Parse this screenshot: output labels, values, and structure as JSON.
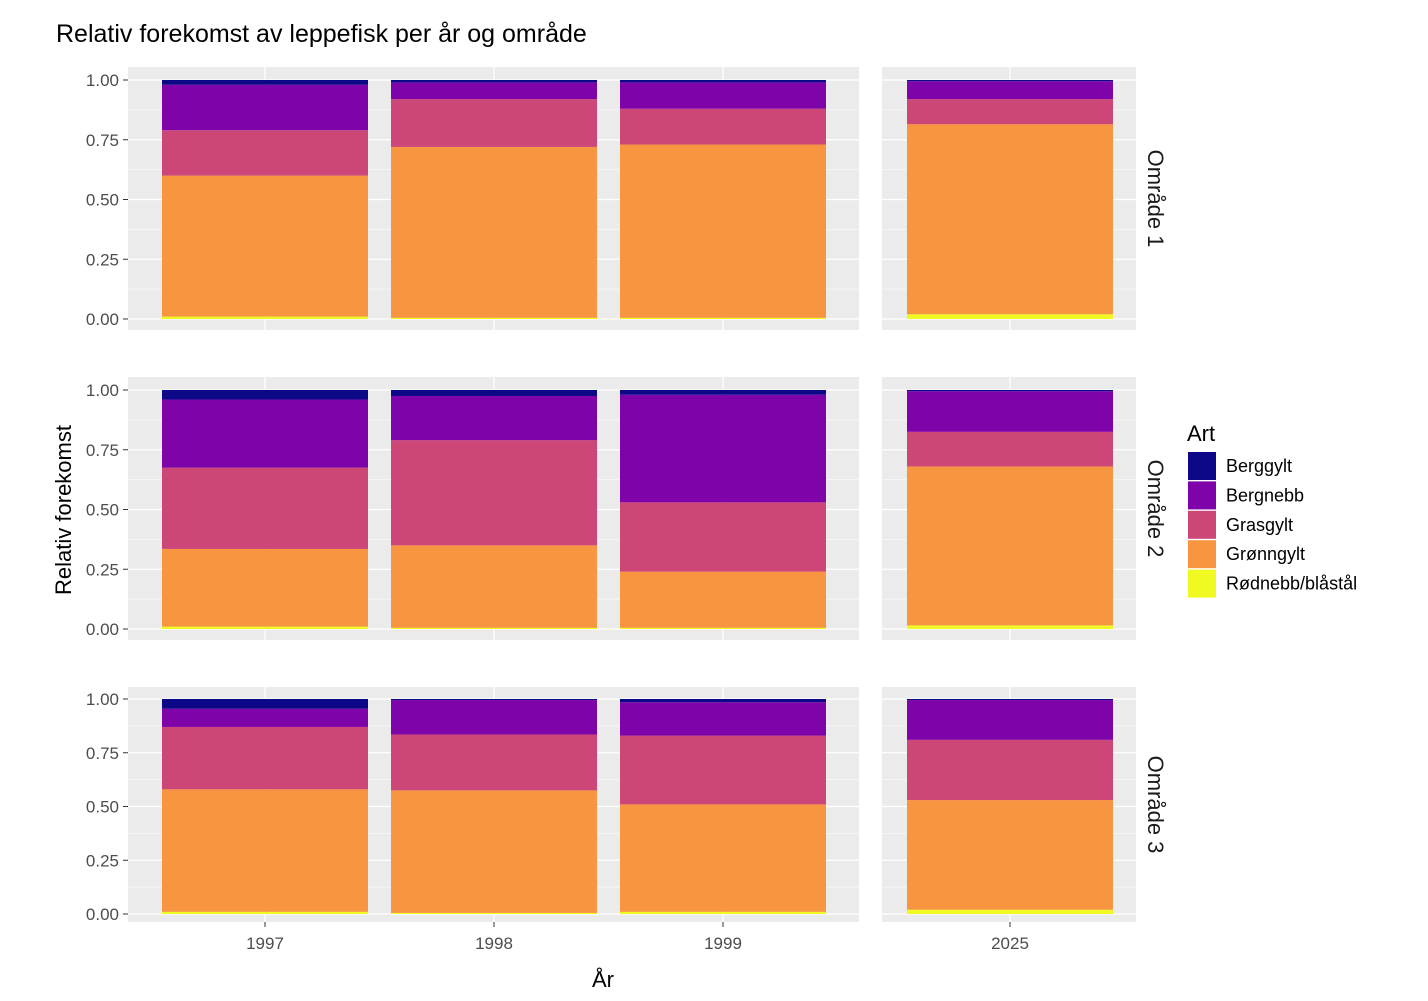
{
  "chart_data": {
    "type": "bar",
    "stacked": true,
    "title": "Relativ forekomst av leppefisk per år og område",
    "xlabel": "År",
    "ylabel": "Relativ forekomst",
    "ylim": [
      0,
      1
    ],
    "y_ticks": [
      "0.00",
      "0.25",
      "0.50",
      "0.75",
      "1.00"
    ],
    "grid": true,
    "legend": {
      "title": "Art",
      "position": "right"
    },
    "x_panels": [
      {
        "categories": [
          "1997",
          "1998",
          "1999"
        ]
      },
      {
        "categories": [
          "2025"
        ]
      }
    ],
    "stack_order": [
      "Rødnebb/blåstål",
      "Grønngylt",
      "Grasgylt",
      "Bergnebb",
      "Berggylt"
    ],
    "series": [
      {
        "name": "Berggylt",
        "color": "#0d0887"
      },
      {
        "name": "Bergnebb",
        "color": "#7e03a8"
      },
      {
        "name": "Grasgylt",
        "color": "#cc4778"
      },
      {
        "name": "Grønngylt",
        "color": "#f89540"
      },
      {
        "name": "Rødnebb/blåstål",
        "color": "#f0f921"
      }
    ],
    "facets": [
      {
        "label": "Område 1",
        "values": {
          "1997": {
            "Rødnebb/blåstål": 0.01,
            "Grønngylt": 0.59,
            "Grasgylt": 0.19,
            "Bergnebb": 0.19,
            "Berggylt": 0.02
          },
          "1998": {
            "Rødnebb/blåstål": 0.005,
            "Grønngylt": 0.715,
            "Grasgylt": 0.2,
            "Bergnebb": 0.07,
            "Berggylt": 0.01
          },
          "1999": {
            "Rødnebb/blåstål": 0.005,
            "Grønngylt": 0.725,
            "Grasgylt": 0.15,
            "Bergnebb": 0.11,
            "Berggylt": 0.01
          },
          "2025": {
            "Rødnebb/blåstål": 0.02,
            "Grønngylt": 0.795,
            "Grasgylt": 0.105,
            "Bergnebb": 0.075,
            "Berggylt": 0.005
          }
        }
      },
      {
        "label": "Område 2",
        "values": {
          "1997": {
            "Rødnebb/blåstål": 0.01,
            "Grønngylt": 0.325,
            "Grasgylt": 0.34,
            "Bergnebb": 0.285,
            "Berggylt": 0.04
          },
          "1998": {
            "Rødnebb/blåstål": 0.005,
            "Grønngylt": 0.345,
            "Grasgylt": 0.44,
            "Bergnebb": 0.185,
            "Berggylt": 0.025
          },
          "1999": {
            "Rødnebb/blåstål": 0.005,
            "Grønngylt": 0.235,
            "Grasgylt": 0.29,
            "Bergnebb": 0.45,
            "Berggylt": 0.02
          },
          "2025": {
            "Rødnebb/blåstål": 0.015,
            "Grønngylt": 0.665,
            "Grasgylt": 0.145,
            "Bergnebb": 0.17,
            "Berggylt": 0.005
          }
        }
      },
      {
        "label": "Område 3",
        "values": {
          "1997": {
            "Rødnebb/blåstål": 0.01,
            "Grønngylt": 0.57,
            "Grasgylt": 0.29,
            "Bergnebb": 0.085,
            "Berggylt": 0.045
          },
          "1998": {
            "Rødnebb/blåstål": 0.005,
            "Grønngylt": 0.57,
            "Grasgylt": 0.26,
            "Bergnebb": 0.16,
            "Berggylt": 0.005
          },
          "1999": {
            "Rødnebb/blåstål": 0.01,
            "Grønngylt": 0.5,
            "Grasgylt": 0.32,
            "Bergnebb": 0.155,
            "Berggylt": 0.015
          },
          "2025": {
            "Rødnebb/blåstål": 0.02,
            "Grønngylt": 0.51,
            "Grasgylt": 0.28,
            "Bergnebb": 0.185,
            "Berggylt": 0.005
          }
        }
      }
    ]
  }
}
